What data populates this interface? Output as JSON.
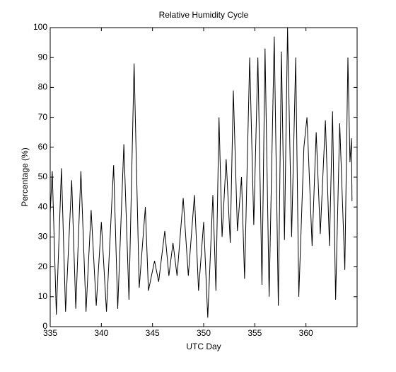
{
  "chart_data": {
    "type": "line",
    "title": "Relative Humidity Cycle",
    "x_label": "UTC Day",
    "y_label": "Percentage (%)",
    "x": [
      335.0,
      335.2,
      335.6,
      336.1,
      336.5,
      337.1,
      337.5,
      338.0,
      338.5,
      339.0,
      339.5,
      340.0,
      340.5,
      341.2,
      341.6,
      342.2,
      342.7,
      343.2,
      343.7,
      344.3,
      344.6,
      345.2,
      345.6,
      346.2,
      346.6,
      347.0,
      347.4,
      348.0,
      348.5,
      349.1,
      349.5,
      350.0,
      350.4,
      350.9,
      351.2,
      351.5,
      351.8,
      352.2,
      352.6,
      352.9,
      353.3,
      353.7,
      354.0,
      354.5,
      354.9,
      355.3,
      355.7,
      356.0,
      356.4,
      356.9,
      357.3,
      357.6,
      357.9,
      358.2,
      358.6,
      359.0,
      359.3,
      359.8,
      360.1,
      360.6,
      361.0,
      361.4,
      361.9,
      362.3,
      362.6,
      362.9,
      363.3,
      363.8,
      364.1,
      364.3,
      364.45,
      364.5
    ],
    "series": [
      {
        "name": "Relative Humidity",
        "color": "#000000",
        "values": [
          38,
          52,
          4,
          53,
          5,
          49,
          6,
          52,
          5,
          39,
          7,
          35,
          5,
          54,
          6,
          61,
          9,
          88,
          13,
          40,
          12,
          22,
          15,
          32,
          17,
          28,
          17,
          43,
          17,
          44,
          12,
          35,
          3,
          44,
          12,
          70,
          30,
          56,
          28,
          79,
          32,
          50,
          16,
          90,
          34,
          90,
          14,
          93,
          10,
          97,
          7,
          92,
          29,
          100,
          30,
          90,
          10,
          60,
          70,
          27,
          65,
          31,
          69,
          27,
          72,
          9,
          68,
          19,
          90,
          55,
          63,
          42
        ]
      }
    ],
    "xlim": [
      335,
      365
    ],
    "ylim": [
      0,
      100
    ],
    "xticks": [
      335,
      340,
      345,
      350,
      355,
      360
    ],
    "yticks": [
      0,
      10,
      20,
      30,
      40,
      50,
      60,
      70,
      80,
      90,
      100
    ]
  }
}
